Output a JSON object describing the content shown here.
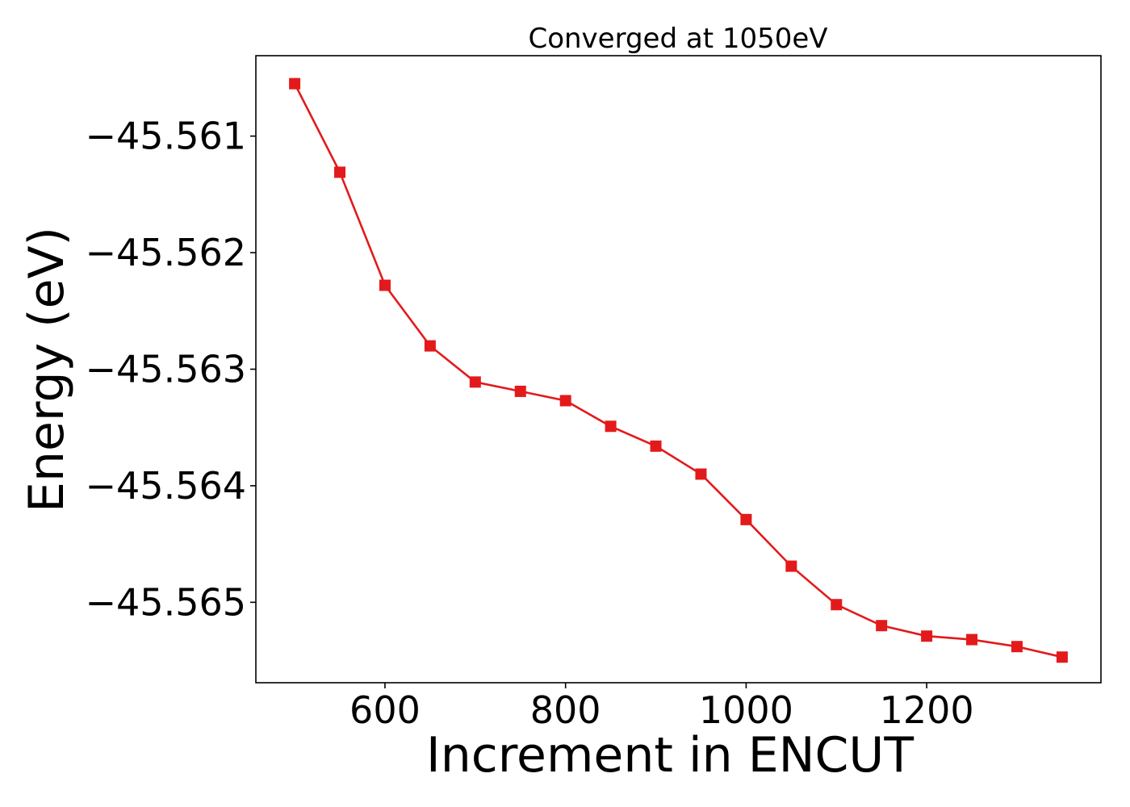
{
  "chart_data": {
    "type": "line",
    "title": "Converged at 1050eV",
    "xlabel": "Increment in ENCUT",
    "ylabel": "Energy (eV)",
    "color": "#e31a1c",
    "marker": "square",
    "grid": false,
    "xlim": [
      457,
      1393
    ],
    "ylim": [
      -45.56569,
      -45.56031
    ],
    "xticks": [
      600,
      800,
      1000,
      1200
    ],
    "xtick_labels": [
      "600",
      "800",
      "1000",
      "1200"
    ],
    "yticks": [
      -45.561,
      -45.562,
      -45.563,
      -45.564,
      -45.565
    ],
    "ytick_labels": [
      "−45.561",
      "−45.562",
      "−45.563",
      "−45.564",
      "−45.565"
    ],
    "series": [
      {
        "x": [
          500,
          550,
          600,
          650,
          700,
          750,
          800,
          850,
          900,
          950,
          1000,
          1050,
          1100,
          1150,
          1200,
          1250,
          1300,
          1350
        ],
        "y": [
          -45.56055,
          -45.56131,
          -45.56228,
          -45.5628,
          -45.56311,
          -45.56319,
          -45.56327,
          -45.56349,
          -45.56366,
          -45.5639,
          -45.56429,
          -45.56469,
          -45.56502,
          -45.5652,
          -45.56529,
          -45.56532,
          -45.56538,
          -45.56547
        ]
      }
    ]
  }
}
